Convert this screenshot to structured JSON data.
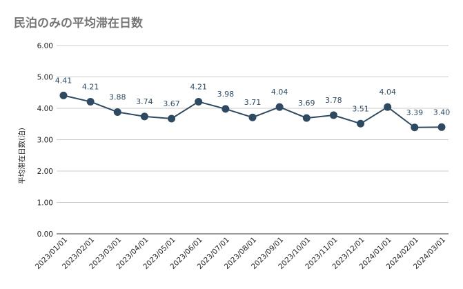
{
  "chart_data": {
    "type": "line",
    "title": "民泊のみの平均滞在日数",
    "xlabel": "",
    "ylabel": "平均滞在日数(泊)",
    "ylim": [
      0,
      6
    ],
    "yticks": [
      "0.00",
      "1.00",
      "2.00",
      "3.00",
      "4.00",
      "5.00",
      "6.00"
    ],
    "grid": true,
    "legend": "none",
    "categories": [
      "2023/01/01",
      "2023/02/01",
      "2023/03/01",
      "2023/04/01",
      "2023/05/01",
      "2023/06/01",
      "2023/07/01",
      "2023/08/01",
      "2023/09/01",
      "2023/10/01",
      "2023/11/01",
      "2023/12/01",
      "2024/01/01",
      "2024/02/01",
      "2024/03/01"
    ],
    "series": [
      {
        "values": [
          4.41,
          4.21,
          3.88,
          3.74,
          3.67,
          4.21,
          3.98,
          3.71,
          4.04,
          3.69,
          3.78,
          3.51,
          4.04,
          3.39,
          3.4
        ],
        "labels": [
          "4.41",
          "4.21",
          "3.88",
          "3.74",
          "3.67",
          "4.21",
          "3.98",
          "3.71",
          "4.04",
          "3.69",
          "3.78",
          "3.51",
          "4.04",
          "3.39",
          "3.40"
        ],
        "color": "#2e4a62"
      }
    ]
  }
}
